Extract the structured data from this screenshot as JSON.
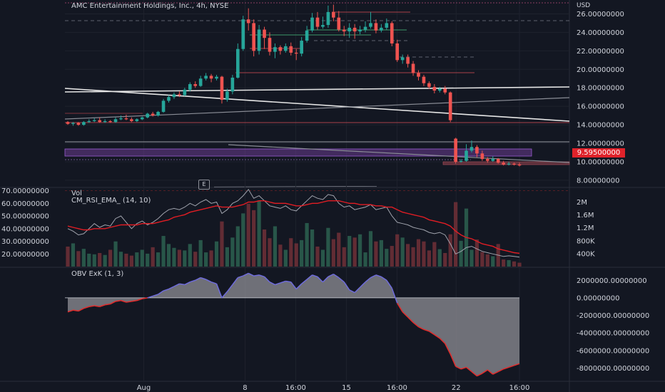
{
  "header": {
    "title": "AMC Entertainment Holdings, Inc., 4h, NYSE"
  },
  "currency": "USD",
  "colors": {
    "up": "#26a69a",
    "down": "#ef5350",
    "bg": "#131722",
    "grid": "#2a2e39",
    "rsi": "#a0a3ad",
    "ema": "#e11d24",
    "obvLine": "#6f6cdc",
    "obvNeg": "#e32b2b",
    "priceTag": "#e0222a",
    "zone": "#6a3d8f"
  },
  "last_price_label": "9.59500000",
  "price_axis_labels": [
    "26.00000000",
    "24.00000000",
    "22.00000000",
    "20.00000000",
    "18.00000000",
    "16.00000000",
    "14.00000000",
    "12.00000000",
    "10.00000000",
    "8.00000000"
  ],
  "indicators": {
    "vol_label": "Vol",
    "rsi_label": "CM_RSI_EMA_ (14, 10)",
    "rsi_axis_labels": [
      "70.00000000",
      "60.00000000",
      "50.00000000",
      "40.00000000",
      "30.00000000",
      "20.00000000"
    ],
    "vol_axis_labels": [
      "2M",
      "1.6M",
      "1.2M",
      "800K",
      "400K"
    ],
    "obv_label": "OBV ExK (1, 3)",
    "obv_axis_labels": [
      "2000000.00000000",
      "0.00000000",
      "-2000000.00000000",
      "-4000000.00000000",
      "-6000000.00000000",
      "-8000000.00000000"
    ]
  },
  "time_axis_labels": [
    "Aug",
    "8",
    "16:00",
    "15",
    "16:00",
    "22",
    "16:00"
  ],
  "event_marker": "E",
  "chart_data": {
    "type": "candlestick",
    "title": "AMC Entertainment Holdings, Inc., 4h, NYSE",
    "ylim": [
      7.3,
      27.5
    ],
    "candles": [
      [
        14.3,
        14.1,
        14.4,
        14.0
      ],
      [
        14.1,
        14.2,
        14.3,
        13.9
      ],
      [
        14.2,
        14.0,
        14.3,
        13.9
      ],
      [
        14.0,
        14.3,
        14.4,
        13.9
      ],
      [
        14.3,
        14.4,
        14.6,
        14.2
      ],
      [
        14.4,
        14.5,
        14.7,
        14.3
      ],
      [
        14.5,
        14.3,
        14.8,
        14.2
      ],
      [
        14.3,
        14.4,
        14.6,
        14.2
      ],
      [
        14.4,
        14.3,
        14.5,
        14.2
      ],
      [
        14.3,
        14.6,
        14.8,
        14.2
      ],
      [
        14.6,
        14.7,
        15.0,
        14.5
      ],
      [
        14.7,
        14.6,
        15.1,
        14.5
      ],
      [
        14.6,
        14.4,
        14.8,
        14.3
      ],
      [
        14.4,
        14.6,
        14.7,
        14.3
      ],
      [
        14.6,
        14.8,
        14.9,
        14.5
      ],
      [
        14.8,
        15.2,
        15.3,
        14.7
      ],
      [
        15.2,
        15.0,
        15.4,
        14.9
      ],
      [
        15.0,
        15.4,
        15.5,
        14.9
      ],
      [
        15.4,
        16.6,
        16.8,
        15.3
      ],
      [
        16.6,
        17.0,
        17.2,
        16.4
      ],
      [
        17.0,
        17.3,
        17.5,
        16.8
      ],
      [
        17.3,
        17.2,
        17.6,
        17.0
      ],
      [
        17.2,
        17.8,
        18.0,
        17.1
      ],
      [
        17.8,
        18.4,
        18.6,
        17.6
      ],
      [
        18.4,
        18.2,
        18.7,
        18.0
      ],
      [
        18.2,
        19.0,
        19.3,
        18.1
      ],
      [
        19.0,
        19.3,
        19.6,
        18.8
      ],
      [
        19.3,
        19.0,
        19.5,
        18.6
      ],
      [
        19.0,
        19.2,
        19.4,
        18.8
      ],
      [
        19.2,
        16.7,
        19.3,
        16.3
      ],
      [
        16.7,
        17.6,
        17.9,
        16.5
      ],
      [
        17.6,
        19.1,
        19.4,
        17.3
      ],
      [
        19.1,
        22.2,
        22.8,
        19.0
      ],
      [
        22.2,
        25.4,
        25.8,
        22.0
      ],
      [
        25.4,
        25.0,
        26.6,
        24.2
      ],
      [
        25.0,
        22.0,
        25.4,
        21.4
      ],
      [
        22.0,
        24.3,
        24.8,
        21.6
      ],
      [
        24.3,
        23.4,
        24.6,
        22.2
      ],
      [
        23.4,
        21.9,
        24.0,
        21.5
      ],
      [
        21.9,
        22.4,
        22.8,
        21.2
      ],
      [
        22.4,
        22.0,
        22.6,
        21.6
      ],
      [
        22.0,
        22.5,
        22.8,
        21.8
      ],
      [
        22.5,
        21.8,
        22.9,
        21.5
      ],
      [
        21.8,
        21.7,
        22.2,
        21.0
      ],
      [
        21.7,
        23.1,
        23.5,
        21.4
      ],
      [
        23.1,
        24.2,
        24.7,
        22.9
      ],
      [
        24.2,
        25.6,
        26.1,
        24.0
      ],
      [
        25.6,
        24.6,
        26.2,
        24.3
      ],
      [
        24.6,
        24.8,
        25.7,
        24.4
      ],
      [
        24.8,
        26.2,
        26.9,
        24.5
      ],
      [
        26.2,
        25.6,
        27.0,
        25.2
      ],
      [
        25.6,
        24.3,
        26.3,
        24.1
      ],
      [
        24.3,
        24.1,
        24.7,
        23.6
      ],
      [
        24.1,
        24.5,
        25.0,
        23.4
      ],
      [
        24.5,
        24.1,
        24.9,
        23.3
      ],
      [
        24.1,
        24.3,
        24.7,
        23.8
      ],
      [
        24.3,
        24.6,
        25.2,
        24.0
      ],
      [
        24.6,
        25.0,
        26.2,
        24.4
      ],
      [
        25.0,
        24.2,
        25.4,
        23.9
      ],
      [
        24.2,
        24.5,
        24.9,
        24.0
      ],
      [
        24.5,
        25.0,
        25.5,
        24.3
      ],
      [
        25.0,
        22.8,
        25.2,
        22.5
      ],
      [
        22.8,
        21.0,
        23.2,
        20.8
      ],
      [
        21.0,
        21.3,
        21.6,
        20.6
      ],
      [
        21.3,
        20.6,
        21.6,
        20.2
      ],
      [
        20.6,
        19.6,
        20.9,
        19.3
      ],
      [
        19.6,
        19.2,
        19.9,
        18.8
      ],
      [
        19.2,
        18.5,
        19.4,
        18.2
      ],
      [
        18.5,
        18.1,
        18.7,
        17.9
      ],
      [
        18.1,
        17.7,
        18.4,
        17.4
      ],
      [
        17.7,
        17.9,
        18.1,
        17.5
      ],
      [
        17.9,
        17.5,
        18.2,
        17.3
      ],
      [
        17.5,
        14.5,
        17.6,
        14.3
      ],
      [
        12.5,
        10.0,
        12.6,
        9.8
      ],
      [
        10.0,
        10.1,
        10.3,
        9.9
      ],
      [
        10.1,
        11.2,
        11.9,
        10.0
      ],
      [
        11.2,
        11.6,
        12.3,
        11.0
      ],
      [
        11.6,
        10.9,
        11.8,
        10.5
      ],
      [
        10.9,
        10.3,
        11.2,
        10.1
      ],
      [
        10.3,
        10.1,
        10.5,
        9.9
      ],
      [
        10.1,
        10.3,
        10.6,
        10.0
      ],
      [
        10.3,
        9.9,
        10.4,
        9.8
      ],
      [
        9.9,
        9.7,
        10.1,
        9.6
      ],
      [
        9.7,
        9.8,
        10.0,
        9.6
      ],
      [
        9.8,
        9.7,
        9.9,
        9.6
      ],
      [
        9.7,
        9.6,
        9.9,
        9.5
      ]
    ],
    "volume_m": [
      0.62,
      0.72,
      0.48,
      0.55,
      0.4,
      0.38,
      0.42,
      0.36,
      0.52,
      0.78,
      0.46,
      0.4,
      0.34,
      0.44,
      0.52,
      0.4,
      0.6,
      0.44,
      0.95,
      0.7,
      0.58,
      0.52,
      0.5,
      0.7,
      0.46,
      0.82,
      0.44,
      0.5,
      0.78,
      1.4,
      0.6,
      0.9,
      1.25,
      1.65,
      1.95,
      1.75,
      2.05,
      1.15,
      0.88,
      1.25,
      0.68,
      0.52,
      0.88,
      0.72,
      0.82,
      1.35,
      1.15,
      0.62,
      0.52,
      1.2,
      0.85,
      1.05,
      0.6,
      0.95,
      0.9,
      1.0,
      0.44,
      1.1,
      0.78,
      0.82,
      0.55,
      0.64,
      1.0,
      0.9,
      0.7,
      0.6,
      0.85,
      0.78,
      0.5,
      0.76,
      0.54,
      0.42,
      1.0,
      2.0,
      0.8,
      1.8,
      0.52,
      0.84,
      0.45,
      0.38,
      0.32,
      0.7,
      0.22,
      0.2,
      0.16,
      0.12
    ],
    "rsi": [
      40,
      38,
      35,
      36,
      40,
      44,
      41,
      43,
      42,
      48,
      50,
      45,
      40,
      44,
      46,
      43,
      45,
      48,
      52,
      55,
      56,
      55,
      57,
      60,
      58,
      61,
      63,
      60,
      61,
      52,
      55,
      60,
      62,
      66,
      71,
      64,
      66,
      62,
      58,
      57,
      56,
      58,
      55,
      54,
      58,
      62,
      66,
      64,
      63,
      67,
      66,
      60,
      57,
      58,
      55,
      56,
      57,
      59,
      55,
      56,
      57,
      50,
      45,
      44,
      43,
      41,
      40,
      39,
      37,
      36,
      37,
      35,
      28,
      20,
      22,
      25,
      26,
      24,
      22,
      21,
      20,
      19,
      18,
      18.5,
      18,
      17.5
    ],
    "rsi_ema": [
      42,
      41,
      40,
      39,
      39,
      40,
      40,
      40,
      41,
      42,
      43,
      43,
      43,
      43,
      44,
      44,
      44,
      45,
      46,
      47,
      49,
      50,
      51,
      53,
      54,
      55,
      56,
      57,
      58,
      57,
      57,
      57,
      58,
      59,
      61,
      61,
      62,
      62,
      61,
      60,
      60,
      60,
      59,
      58,
      58,
      59,
      60,
      60,
      61,
      62,
      62,
      62,
      61,
      60,
      60,
      59,
      59,
      59,
      58,
      58,
      57,
      57,
      55,
      53,
      52,
      51,
      50,
      49,
      47,
      46,
      45,
      44,
      42,
      38,
      35,
      33,
      32,
      30,
      28,
      27,
      26,
      24,
      23,
      22,
      21,
      20.5
    ],
    "obv_m": [
      -1.6,
      -1.4,
      -1.5,
      -1.2,
      -1.0,
      -0.9,
      -1.0,
      -0.8,
      -0.7,
      -0.4,
      -0.3,
      -0.5,
      -0.4,
      -0.3,
      -0.1,
      0.0,
      0.2,
      0.4,
      0.8,
      1.0,
      1.3,
      1.6,
      1.5,
      1.8,
      2.0,
      2.3,
      2.1,
      1.8,
      1.6,
      0.0,
      0.7,
      1.5,
      2.3,
      2.5,
      2.8,
      2.5,
      2.6,
      2.4,
      1.8,
      1.5,
      1.7,
      1.9,
      1.8,
      1.0,
      1.6,
      2.1,
      2.6,
      2.4,
      1.8,
      2.4,
      2.7,
      2.3,
      1.8,
      0.9,
      0.6,
      1.2,
      1.8,
      2.3,
      2.6,
      2.4,
      2.0,
      1.1,
      -0.6,
      -1.6,
      -2.2,
      -2.8,
      -3.3,
      -3.6,
      -3.8,
      -4.2,
      -4.6,
      -5.2,
      -6.4,
      -7.8,
      -8.1,
      -7.9,
      -8.4,
      -8.9,
      -8.6,
      -8.2,
      -8.7,
      -8.4,
      -8.1,
      -7.9,
      -7.7,
      -7.5
    ],
    "rsi_ylim": [
      10,
      72
    ],
    "volume_ylim_m": [
      0,
      2.3
    ],
    "obv_ylim_m": [
      -9.5,
      3.4
    ]
  }
}
